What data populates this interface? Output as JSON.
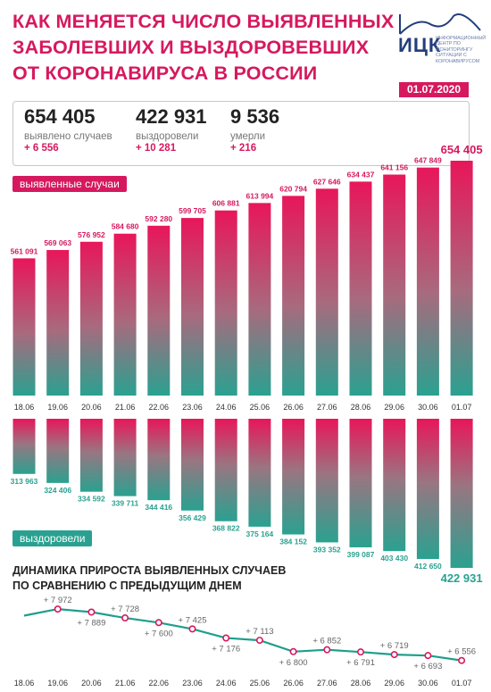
{
  "title_lines": [
    "КАК МЕНЯЕТСЯ ЧИСЛО ВЫЯВЛЕННЫХ",
    "ЗАБОЛЕВШИХ И ВЫЗДОРОВЕВШИХ",
    "ОТ КОРОНАВИРУСА В РОССИИ"
  ],
  "logo": {
    "name": "ИЦК",
    "subtitle": "ИНФОРМАЦИОННЫЙ ЦЕНТР ПО МОНИТОРИНГУ СИТУАЦИИ С КОРОНАВИРУСОМ"
  },
  "date": "01.07.2020",
  "stats": [
    {
      "value": "654 405",
      "label": "выявлено случаев",
      "change": "+ 6 556"
    },
    {
      "value": "422 931",
      "label": "выздоровели",
      "change": "+ 10 281"
    },
    {
      "value": "9 536",
      "label": "умерли",
      "change": "+ 216"
    }
  ],
  "colors": {
    "accent": "#d6195e",
    "recovered": "#2aa190",
    "line": "#1e9e8c"
  },
  "chart_data": [
    {
      "type": "bar",
      "legend": "выявленные случаи",
      "categories": [
        "18.06",
        "19.06",
        "20.06",
        "21.06",
        "22.06",
        "23.06",
        "24.06",
        "25.06",
        "26.06",
        "27.06",
        "28.06",
        "29.06",
        "30.06",
        "01.07"
      ],
      "values": [
        561091,
        569063,
        576952,
        584680,
        592280,
        599705,
        606881,
        613994,
        620794,
        627646,
        634437,
        641156,
        647849,
        654405
      ],
      "labels": [
        "561 091",
        "569 063",
        "576 952",
        "584 680",
        "592 280",
        "599 705",
        "606 881",
        "613 994",
        "620 794",
        "627 646",
        "634 437",
        "641 156",
        "647 849",
        "654 405"
      ]
    },
    {
      "type": "bar",
      "legend": "выздоровели",
      "categories": [
        "18.06",
        "19.06",
        "20.06",
        "21.06",
        "22.06",
        "23.06",
        "24.06",
        "25.06",
        "26.06",
        "27.06",
        "28.06",
        "29.06",
        "30.06",
        "01.07"
      ],
      "values": [
        313963,
        324406,
        334592,
        339711,
        344416,
        356429,
        368822,
        375164,
        384152,
        393352,
        399087,
        403430,
        412650,
        422931
      ],
      "labels": [
        "313 963",
        "324 406",
        "334 592",
        "339 711",
        "344 416",
        "356 429",
        "368 822",
        "375 164",
        "384 152",
        "393 352",
        "399 087",
        "403 430",
        "412 650",
        "422 931"
      ]
    },
    {
      "type": "line",
      "title": "ДИНАМИКА ПРИРОСТА ВЫЯВЛЕННЫХ СЛУЧАЕВ ПО СРАВНЕНИЮ С ПРЕДЫДУЩИМ ДНЕМ",
      "title_lines": [
        "ДИНАМИКА ПРИРОСТА ВЫЯВЛЕННЫХ СЛУЧАЕВ",
        "ПО СРАВНЕНИЮ С ПРЕДЫДУЩИМ ДНЕМ"
      ],
      "categories": [
        "18.06",
        "19.06",
        "20.06",
        "21.06",
        "22.06",
        "23.06",
        "24.06",
        "25.06",
        "26.06",
        "27.06",
        "28.06",
        "29.06",
        "30.06",
        "01.07"
      ],
      "values": [
        7790,
        7972,
        7889,
        7728,
        7600,
        7425,
        7176,
        7113,
        6800,
        6852,
        6791,
        6719,
        6693,
        6556
      ],
      "labels": [
        "",
        "+ 7 972",
        "+ 7 889",
        "+ 7 728",
        "+ 7 600",
        "+ 7 425",
        "+ 7 176",
        "+ 7 113",
        "+ 6 800",
        "+ 6 852",
        "+ 6 791",
        "+ 6 719",
        "+ 6 693",
        "+ 6 556"
      ]
    }
  ]
}
